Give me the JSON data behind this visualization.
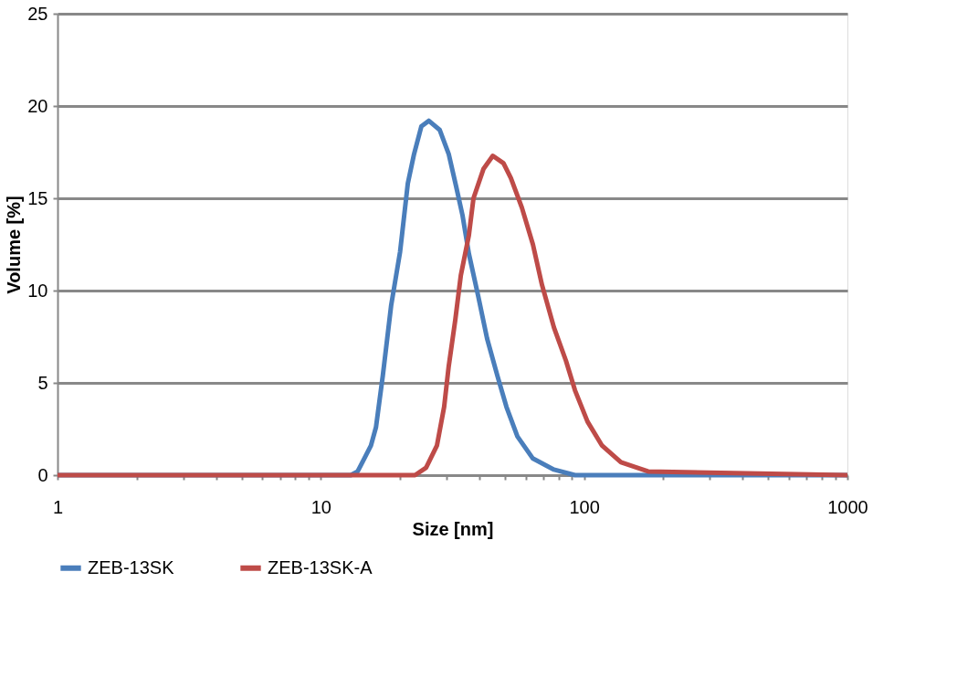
{
  "chart_data": {
    "type": "line",
    "xlabel": "Size [nm]",
    "ylabel": "Volume [%]",
    "log": "x",
    "xlim": [
      1,
      1000
    ],
    "ylim": [
      0,
      25
    ],
    "xticks": [
      1,
      {
        "value": 2,
        "label": null
      },
      {
        "value": 3,
        "label": null
      },
      {
        "value": 4,
        "label": null
      },
      {
        "value": 5,
        "label": null
      },
      {
        "value": 6,
        "label": null
      },
      {
        "value": 7,
        "label": null
      },
      {
        "value": 8,
        "label": null
      },
      {
        "value": 9,
        "label": null
      },
      10,
      {
        "value": 20,
        "label": null
      },
      {
        "value": 30,
        "label": null
      },
      {
        "value": 40,
        "label": null
      },
      {
        "value": 50,
        "label": null
      },
      {
        "value": 60,
        "label": null
      },
      {
        "value": 70,
        "label": null
      },
      {
        "value": 80,
        "label": null
      },
      {
        "value": 90,
        "label": null
      },
      100,
      {
        "value": 200,
        "label": null
      },
      {
        "value": 300,
        "label": null
      },
      {
        "value": 400,
        "label": null
      },
      {
        "value": 500,
        "label": null
      },
      {
        "value": 600,
        "label": null
      },
      {
        "value": 700,
        "label": null
      },
      {
        "value": 800,
        "label": null
      },
      {
        "value": 900,
        "label": null
      },
      1000
    ],
    "yticks": [
      0,
      5,
      10,
      15,
      20,
      25
    ],
    "grid": "y",
    "legend": "bottom",
    "marker": "none",
    "line_style": "solid",
    "series": [
      {
        "name": "ZEB-13SK",
        "color": "#4a7ebb",
        "x": [
          1,
          13,
          13.8,
          15.5,
          16.2,
          17.2,
          18.5,
          20.0,
          21.4,
          22.6,
          24.1,
          25.7,
          28.3,
          30.6,
          32.7,
          34.5,
          36.5,
          39.6,
          42.8,
          46.8,
          50.7,
          55.8,
          63.9,
          76.8,
          92.3,
          1000
        ],
        "values": [
          0,
          0,
          0.2,
          1.6,
          2.6,
          5.4,
          9.2,
          12.1,
          15.8,
          17.4,
          18.9,
          19.2,
          18.7,
          17.4,
          15.6,
          14.1,
          12.0,
          9.7,
          7.4,
          5.4,
          3.7,
          2.1,
          0.9,
          0.3,
          0,
          0
        ]
      },
      {
        "name": "ZEB-13SK-A",
        "color": "#be4b48",
        "x": [
          1,
          22.8,
          25.1,
          27.6,
          29.4,
          30.6,
          32.4,
          34.0,
          36.5,
          38.0,
          41.5,
          45.0,
          49.4,
          52.7,
          58.0,
          63.9,
          69.2,
          76.8,
          85.3,
          92.3,
          103,
          117,
          138,
          175,
          1000
        ],
        "values": [
          0,
          0,
          0.4,
          1.6,
          3.7,
          5.9,
          8.4,
          10.8,
          13.0,
          15.0,
          16.6,
          17.3,
          16.9,
          16.1,
          14.5,
          12.5,
          10.3,
          8.0,
          6.2,
          4.6,
          2.9,
          1.6,
          0.7,
          0.2,
          0
        ]
      }
    ]
  }
}
